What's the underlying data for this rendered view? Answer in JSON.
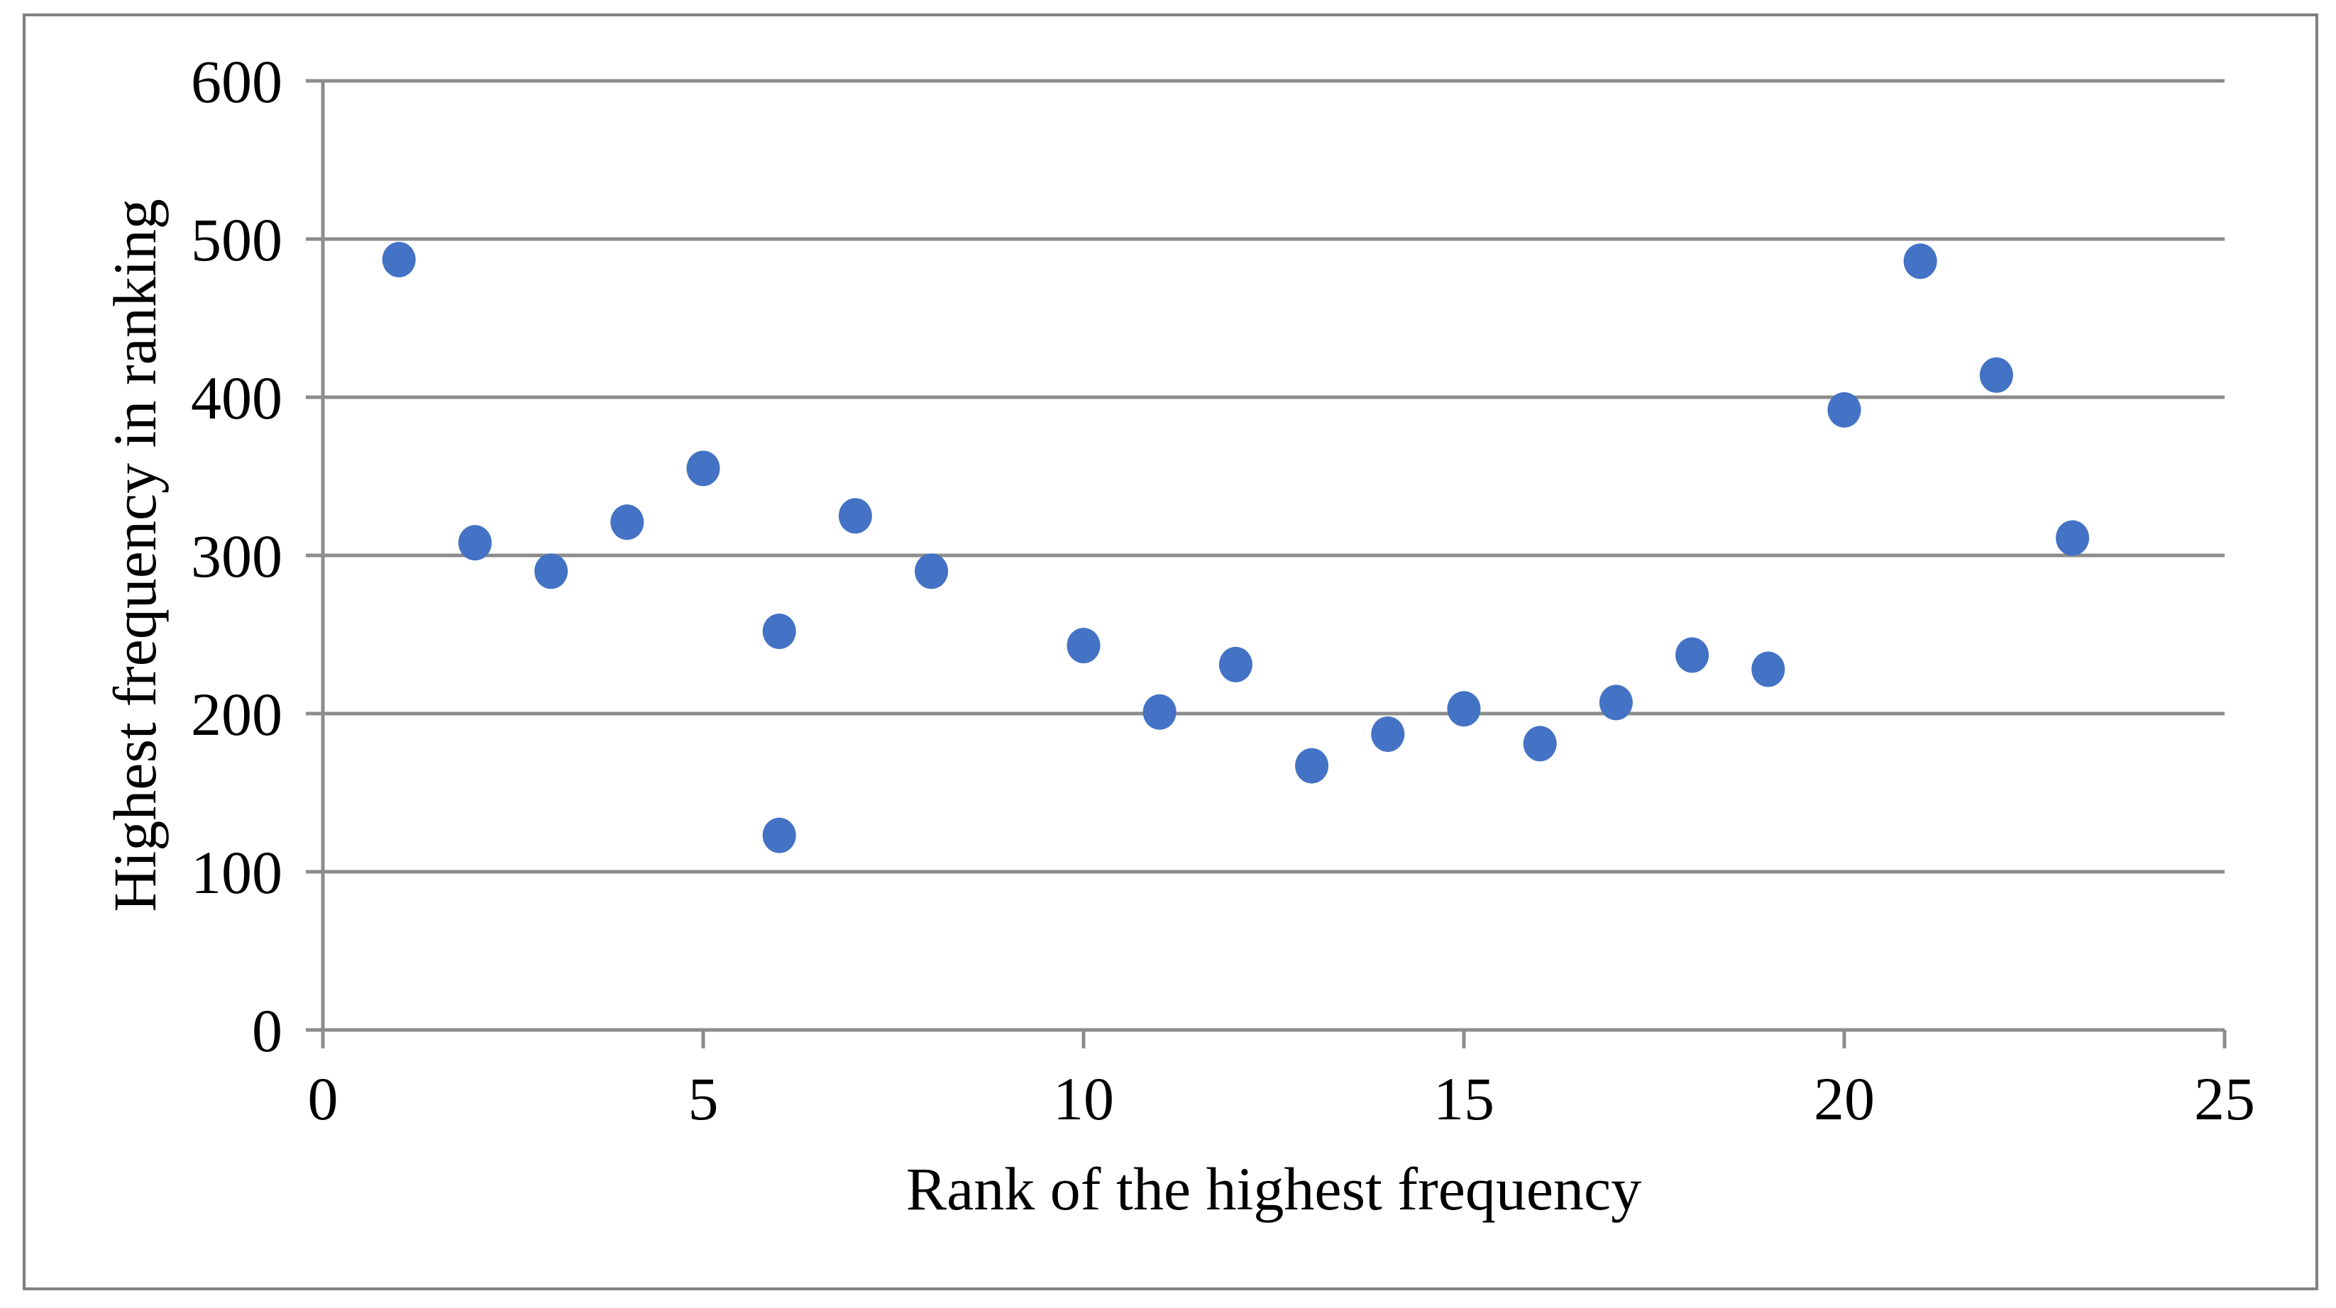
{
  "chart_data": {
    "type": "scatter",
    "title": "",
    "xlabel": "Rank of the highest frequency",
    "ylabel": "Highest frequency in ranking",
    "points": [
      {
        "x": 1,
        "y": 487
      },
      {
        "x": 2,
        "y": 308
      },
      {
        "x": 3,
        "y": 290
      },
      {
        "x": 4,
        "y": 321
      },
      {
        "x": 5,
        "y": 355
      },
      {
        "x": 6,
        "y": 252
      },
      {
        "x": 6,
        "y": 123
      },
      {
        "x": 7,
        "y": 325
      },
      {
        "x": 8,
        "y": 290
      },
      {
        "x": 10,
        "y": 243
      },
      {
        "x": 11,
        "y": 201
      },
      {
        "x": 12,
        "y": 231
      },
      {
        "x": 13,
        "y": 167
      },
      {
        "x": 14,
        "y": 187
      },
      {
        "x": 15,
        "y": 203
      },
      {
        "x": 16,
        "y": 181
      },
      {
        "x": 17,
        "y": 207
      },
      {
        "x": 18,
        "y": 237
      },
      {
        "x": 19,
        "y": 228
      },
      {
        "x": 20,
        "y": 392
      },
      {
        "x": 21,
        "y": 486
      },
      {
        "x": 22,
        "y": 414
      },
      {
        "x": 23,
        "y": 311
      }
    ],
    "xlim": [
      0,
      25
    ],
    "ylim": [
      0,
      600
    ],
    "xticks": [
      0,
      5,
      10,
      15,
      20,
      25
    ],
    "yticks": [
      0,
      100,
      200,
      300,
      400,
      500,
      600
    ],
    "grid": "horizontal-only",
    "legend": "none",
    "marker": {
      "shape": "circle",
      "color": "#4472C4"
    }
  },
  "colors": {
    "marker": "#4472C4",
    "gridline": "#8C8C8C",
    "axis_line": "#8C8C8C",
    "outer_border": "#7F7F7F",
    "text": "#000000",
    "background": "#FFFFFF"
  }
}
